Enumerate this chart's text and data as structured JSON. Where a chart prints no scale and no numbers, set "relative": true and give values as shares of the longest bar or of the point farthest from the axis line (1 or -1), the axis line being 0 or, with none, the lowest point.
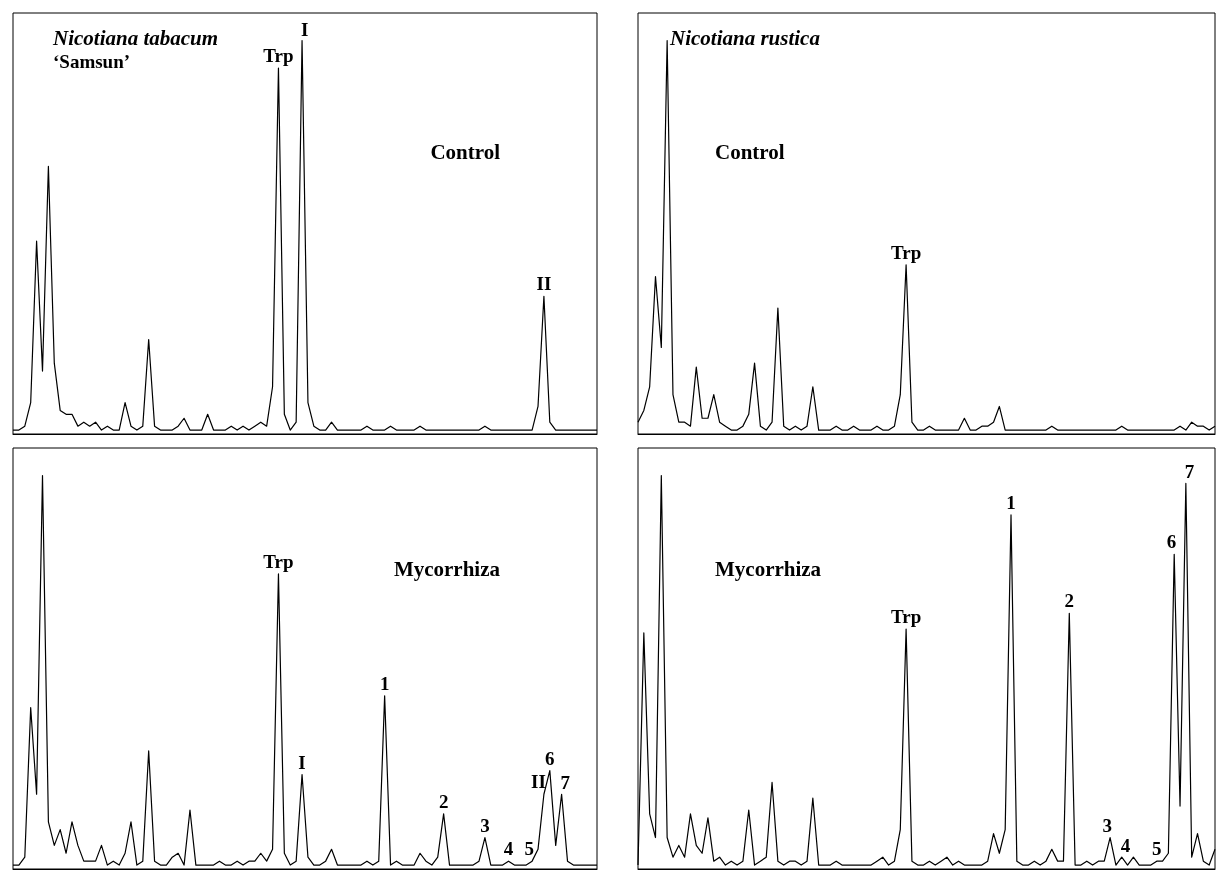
{
  "chart_data": [
    {
      "type": "line",
      "title": "Nicotiana tabacum",
      "subtitle": "‘Samsun’",
      "relative": true,
      "marker": "none",
      "annotations": [
        "Control",
        {
          "text": "Trp",
          "y": 0.93
        },
        {
          "text": "I",
          "y": 1
        },
        {
          "text": "II",
          "y": 0.35
        }
      ],
      "categories": [
        null,
        null,
        null,
        null,
        null,
        null,
        null,
        null,
        null,
        null,
        null,
        null,
        null,
        null,
        null,
        null,
        null,
        null,
        null,
        null,
        null,
        null,
        null,
        null,
        null,
        null,
        null,
        null,
        null,
        null,
        null,
        null,
        null,
        null,
        null,
        null,
        null,
        null,
        null,
        null,
        null,
        null,
        null,
        null,
        null,
        null,
        null,
        null,
        null,
        null,
        null,
        null,
        null,
        null,
        null,
        null,
        null,
        null,
        null,
        null,
        null,
        null,
        null,
        null,
        null,
        null,
        null,
        null,
        null,
        null,
        null,
        null,
        null,
        null,
        null,
        null,
        null,
        null,
        null,
        null,
        null,
        null,
        null,
        null,
        null,
        null,
        null,
        null,
        null,
        null,
        null,
        null,
        null,
        null,
        null,
        null,
        null,
        null,
        null,
        null
      ],
      "series": [
        {
          "color": "#000000",
          "values": [
            0.01,
            0.01,
            0.02,
            0.08,
            0.49,
            0.16,
            0.68,
            0.18,
            0.06,
            0.05,
            0.05,
            0.02,
            0.03,
            0.02,
            0.03,
            0.01,
            0.02,
            0.01,
            0.01,
            0.08,
            0.02,
            0.01,
            0.02,
            0.24,
            0.02,
            0.01,
            0.01,
            0.01,
            0.02,
            0.04,
            0.01,
            0.01,
            0.01,
            0.05,
            0.01,
            0.01,
            0.01,
            0.02,
            0.01,
            0.02,
            0.01,
            0.02,
            0.03,
            0.02,
            0.12,
            0.93,
            0.05,
            0.01,
            0.03,
            1,
            0.08,
            0.02,
            0.01,
            0.01,
            0.03,
            0.01,
            0.01,
            0.01,
            0.01,
            0.01,
            0.02,
            0.01,
            0.01,
            0.01,
            0.02,
            0.01,
            0.01,
            0.01,
            0.01,
            0.02,
            0.01,
            0.01,
            0.01,
            0.01,
            0.01,
            0.01,
            0.01,
            0.01,
            0.01,
            0.01,
            0.02,
            0.01,
            0.01,
            0.01,
            0.01,
            0.01,
            0.01,
            0.01,
            0.01,
            0.07,
            0.35,
            0.03,
            0.01,
            0.01,
            0.01,
            0.01,
            0.01,
            0.01,
            0.01,
            0.01
          ]
        }
      ]
    },
    {
      "type": "line",
      "title": "Nicotiana rustica",
      "relative": true,
      "marker": "none",
      "annotations": [
        "Control",
        {
          "text": "Trp",
          "y": 0.43
        }
      ],
      "categories": [
        null,
        null,
        null,
        null,
        null,
        null,
        null,
        null,
        null,
        null,
        null,
        null,
        null,
        null,
        null,
        null,
        null,
        null,
        null,
        null,
        null,
        null,
        null,
        null,
        null,
        null,
        null,
        null,
        null,
        null,
        null,
        null,
        null,
        null,
        null,
        null,
        null,
        null,
        null,
        null,
        null,
        null,
        null,
        null,
        null,
        null,
        null,
        null,
        null,
        null,
        null,
        null,
        null,
        null,
        null,
        null,
        null,
        null,
        null,
        null,
        null,
        null,
        null,
        null,
        null,
        null,
        null,
        null,
        null,
        null,
        null,
        null,
        null,
        null,
        null,
        null,
        null,
        null,
        null,
        null,
        null,
        null,
        null,
        null,
        null,
        null,
        null,
        null,
        null,
        null,
        null,
        null,
        null,
        null,
        null,
        null,
        null,
        null,
        null,
        null
      ],
      "series": [
        {
          "color": "#000000",
          "values": [
            0.03,
            0.06,
            0.12,
            0.4,
            0.22,
            1,
            0.1,
            0.03,
            0.03,
            0.02,
            0.17,
            0.04,
            0.04,
            0.1,
            0.03,
            0.02,
            0.01,
            0.01,
            0.02,
            0.05,
            0.18,
            0.02,
            0.01,
            0.03,
            0.32,
            0.02,
            0.01,
            0.02,
            0.01,
            0.02,
            0.12,
            0.01,
            0.01,
            0.01,
            0.02,
            0.01,
            0.01,
            0.02,
            0.01,
            0.01,
            0.01,
            0.02,
            0.01,
            0.01,
            0.02,
            0.1,
            0.43,
            0.03,
            0.01,
            0.01,
            0.02,
            0.01,
            0.01,
            0.01,
            0.01,
            0.01,
            0.04,
            0.01,
            0.01,
            0.02,
            0.02,
            0.03,
            0.07,
            0.01,
            0.01,
            0.01,
            0.01,
            0.01,
            0.01,
            0.01,
            0.01,
            0.02,
            0.01,
            0.01,
            0.01,
            0.01,
            0.01,
            0.01,
            0.01,
            0.01,
            0.01,
            0.01,
            0.01,
            0.02,
            0.01,
            0.01,
            0.01,
            0.01,
            0.01,
            0.01,
            0.01,
            0.01,
            0.01,
            0.02,
            0.01,
            0.03,
            0.02,
            0.02,
            0.01,
            0.02
          ]
        }
      ]
    },
    {
      "type": "line",
      "relative": true,
      "marker": "none",
      "annotations": [
        "Mycorrhiza",
        {
          "text": "Trp",
          "y": 0.75
        },
        {
          "text": "I",
          "y": 0.24
        },
        {
          "text": "1",
          "y": 0.44
        },
        {
          "text": "2",
          "y": 0.14
        },
        {
          "text": "3",
          "y": 0.08
        },
        {
          "text": "4",
          "y": 0.02
        },
        {
          "text": "5",
          "y": 0.02
        },
        {
          "text": "II",
          "y": 0.19
        },
        {
          "text": "6",
          "y": 0.25
        },
        {
          "text": "7",
          "y": 0.19
        }
      ],
      "categories": [
        null,
        null,
        null,
        null,
        null,
        null,
        null,
        null,
        null,
        null,
        null,
        null,
        null,
        null,
        null,
        null,
        null,
        null,
        null,
        null,
        null,
        null,
        null,
        null,
        null,
        null,
        null,
        null,
        null,
        null,
        null,
        null,
        null,
        null,
        null,
        null,
        null,
        null,
        null,
        null,
        null,
        null,
        null,
        null,
        null,
        null,
        null,
        null,
        null,
        null,
        null,
        null,
        null,
        null,
        null,
        null,
        null,
        null,
        null,
        null,
        null,
        null,
        null,
        null,
        null,
        null,
        null,
        null,
        null,
        null,
        null,
        null,
        null,
        null,
        null,
        null,
        null,
        null,
        null,
        null,
        null,
        null,
        null,
        null,
        null,
        null,
        null,
        null,
        null,
        null,
        null,
        null,
        null,
        null,
        null,
        null,
        null,
        null,
        null,
        null
      ],
      "series": [
        {
          "color": "#000000",
          "values": [
            0.01,
            0.01,
            0.03,
            0.41,
            0.19,
            1,
            0.12,
            0.06,
            0.1,
            0.04,
            0.12,
            0.06,
            0.02,
            0.02,
            0.02,
            0.06,
            0.01,
            0.02,
            0.01,
            0.04,
            0.12,
            0.01,
            0.02,
            0.3,
            0.02,
            0.01,
            0.01,
            0.03,
            0.04,
            0.01,
            0.15,
            0.01,
            0.01,
            0.01,
            0.01,
            0.02,
            0.01,
            0.01,
            0.02,
            0.01,
            0.02,
            0.02,
            0.04,
            0.02,
            0.05,
            0.75,
            0.04,
            0.01,
            0.02,
            0.24,
            0.03,
            0.01,
            0.01,
            0.02,
            0.05,
            0.01,
            0.01,
            0.01,
            0.01,
            0.01,
            0.02,
            0.01,
            0.02,
            0.44,
            0.01,
            0.02,
            0.01,
            0.01,
            0.01,
            0.04,
            0.02,
            0.01,
            0.03,
            0.14,
            0.01,
            0.01,
            0.01,
            0.01,
            0.01,
            0.02,
            0.08,
            0.01,
            0.01,
            0.01,
            0.02,
            0.01,
            0.01,
            0.01,
            0.02,
            0.05,
            0.19,
            0.25,
            0.06,
            0.19,
            0.02,
            0.01,
            0.01,
            0.01,
            0.01,
            0.01
          ]
        }
      ]
    },
    {
      "type": "line",
      "relative": true,
      "marker": "none",
      "annotations": [
        "Mycorrhiza",
        {
          "text": "Trp",
          "y": 0.61
        },
        {
          "text": "1",
          "y": 0.9
        },
        {
          "text": "2",
          "y": 0.65
        },
        {
          "text": "3",
          "y": 0.08
        },
        {
          "text": "4",
          "y": 0.03
        },
        {
          "text": "5",
          "y": 0.02
        },
        {
          "text": "6",
          "y": 0.8
        },
        {
          "text": "7",
          "y": 0.98
        }
      ],
      "categories": [
        null,
        null,
        null,
        null,
        null,
        null,
        null,
        null,
        null,
        null,
        null,
        null,
        null,
        null,
        null,
        null,
        null,
        null,
        null,
        null,
        null,
        null,
        null,
        null,
        null,
        null,
        null,
        null,
        null,
        null,
        null,
        null,
        null,
        null,
        null,
        null,
        null,
        null,
        null,
        null,
        null,
        null,
        null,
        null,
        null,
        null,
        null,
        null,
        null,
        null,
        null,
        null,
        null,
        null,
        null,
        null,
        null,
        null,
        null,
        null,
        null,
        null,
        null,
        null,
        null,
        null,
        null,
        null,
        null,
        null,
        null,
        null,
        null,
        null,
        null,
        null,
        null,
        null,
        null,
        null,
        null,
        null,
        null,
        null,
        null,
        null,
        null,
        null,
        null,
        null,
        null,
        null,
        null,
        null,
        null,
        null,
        null,
        null,
        null,
        null
      ],
      "series": [
        {
          "color": "#000000",
          "values": [
            0.01,
            0.6,
            0.14,
            0.08,
            1,
            0.08,
            0.03,
            0.06,
            0.03,
            0.14,
            0.06,
            0.04,
            0.13,
            0.02,
            0.03,
            0.01,
            0.02,
            0.01,
            0.02,
            0.15,
            0.01,
            0.02,
            0.03,
            0.22,
            0.02,
            0.01,
            0.02,
            0.02,
            0.01,
            0.02,
            0.18,
            0.01,
            0.01,
            0.01,
            0.02,
            0.01,
            0.01,
            0.01,
            0.01,
            0.01,
            0.01,
            0.02,
            0.03,
            0.01,
            0.02,
            0.1,
            0.61,
            0.02,
            0.01,
            0.01,
            0.02,
            0.01,
            0.02,
            0.03,
            0.01,
            0.02,
            0.01,
            0.01,
            0.01,
            0.01,
            0.02,
            0.09,
            0.04,
            0.1,
            0.9,
            0.02,
            0.01,
            0.01,
            0.02,
            0.01,
            0.02,
            0.05,
            0.02,
            0.02,
            0.65,
            0.01,
            0.01,
            0.02,
            0.01,
            0.02,
            0.02,
            0.08,
            0.01,
            0.03,
            0.01,
            0.03,
            0.01,
            0.01,
            0.01,
            0.02,
            0.02,
            0.04,
            0.8,
            0.16,
            0.98,
            0.03,
            0.09,
            0.02,
            0.01,
            0.05
          ]
        }
      ]
    }
  ]
}
